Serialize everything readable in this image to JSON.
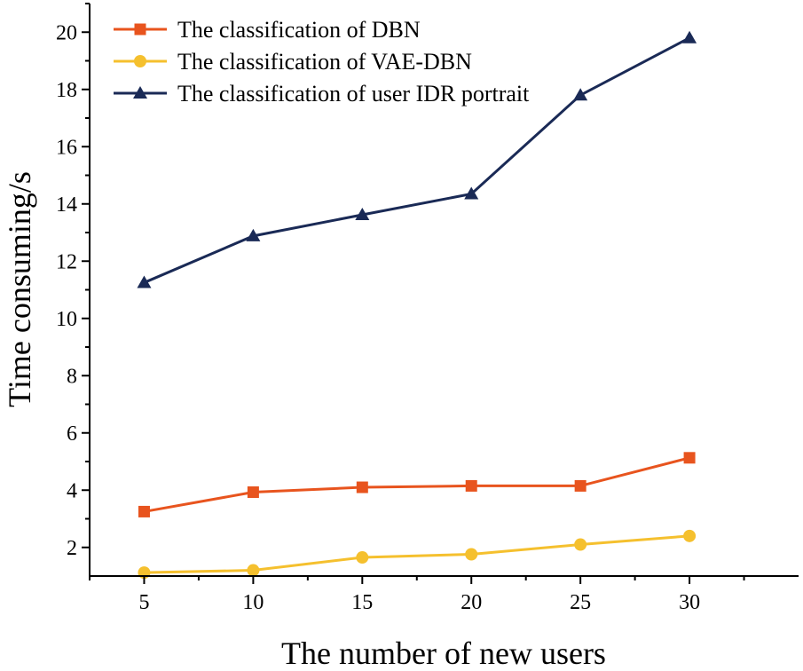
{
  "chart_data": {
    "type": "line",
    "title": "",
    "xlabel": "The number of new users",
    "ylabel": "Time consuming/s",
    "x": [
      5,
      10,
      15,
      20,
      25,
      30
    ],
    "xticks": [
      "5",
      "10",
      "15",
      "20",
      "25",
      "30"
    ],
    "yticks": [
      "2",
      "4",
      "6",
      "8",
      "10",
      "12",
      "14",
      "16",
      "18",
      "20"
    ],
    "xlim": [
      2.5,
      35
    ],
    "ylim": [
      1,
      21
    ],
    "grid": false,
    "legend_position": "top-left",
    "series": [
      {
        "name": "The classification of DBN",
        "marker": "square",
        "color": "#e8541e",
        "values": [
          3.25,
          3.93,
          4.1,
          4.15,
          4.15,
          5.13
        ]
      },
      {
        "name": "The classification of VAE-DBN",
        "marker": "circle",
        "color": "#f5c02e",
        "values": [
          1.12,
          1.2,
          1.65,
          1.76,
          2.1,
          2.4
        ]
      },
      {
        "name": "The classification of user IDR portrait",
        "marker": "triangle",
        "color": "#1a2a56",
        "values": [
          11.25,
          12.88,
          13.62,
          14.35,
          17.8,
          19.8
        ]
      }
    ]
  }
}
